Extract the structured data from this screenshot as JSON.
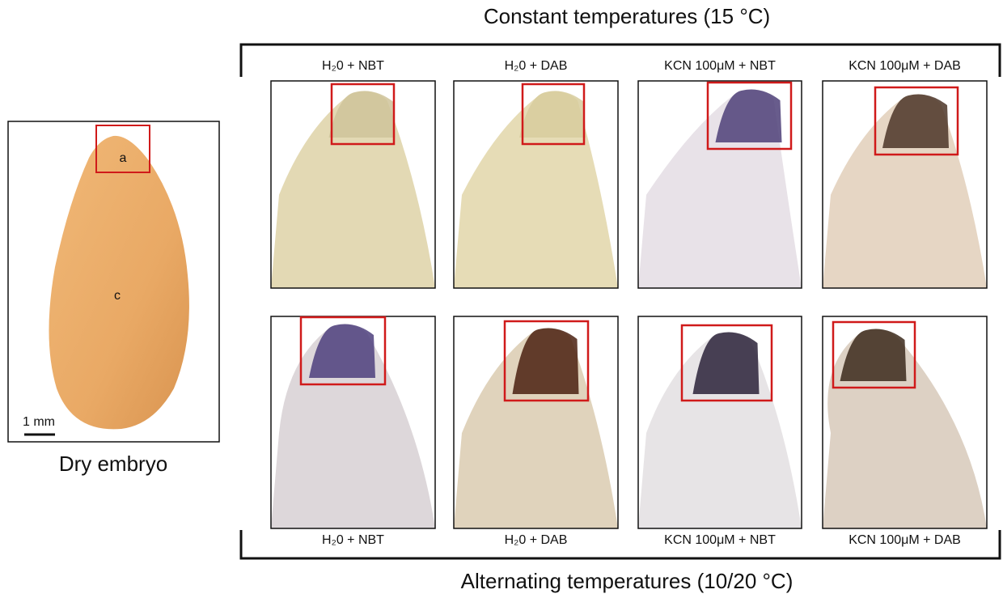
{
  "header": {
    "title": "Constant temperatures (15 °C)"
  },
  "footer": {
    "title": "Alternating temperatures (10/20 °C)"
  },
  "left_panel": {
    "caption": "Dry embryo",
    "labels": [
      "a",
      "c"
    ],
    "scale_bar": "1 mm"
  },
  "top_row": {
    "labels": [
      "H₂0 + NBT",
      "H₂0 + DAB",
      "KCN 100μM + NBT",
      "KCN 100μM + DAB"
    ]
  },
  "bottom_row": {
    "labels": [
      "H₂0 + NBT",
      "H₂0 + DAB",
      "KCN 100μM + NBT",
      "KCN 100μM + DAB"
    ]
  }
}
